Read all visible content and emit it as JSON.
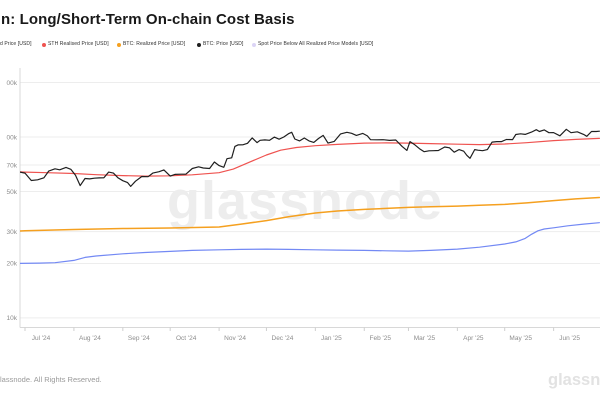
{
  "header": {
    "title": "n: Long/Short-Term On-chain Cost Basis"
  },
  "legend": {
    "items": [
      {
        "label": "d Price [USD]",
        "color": null
      },
      {
        "label": "STH Realised Price [USD]",
        "color": "#ef5350"
      },
      {
        "label": "BTC: Realized Price [USD]",
        "color": "#f5a01f"
      },
      {
        "label": "BTC: Price [USD]",
        "color": "#1f1f1f"
      },
      {
        "label": "Spot Price Below All Realized Price Models [USD]",
        "color": "#dbd4f6"
      }
    ]
  },
  "watermark": "glassnode",
  "footer": {
    "copyright": "lassnode. All Rights Reserved.",
    "wordmark": "glassnode"
  },
  "chart_data": {
    "type": "line",
    "scale": "log",
    "grid": "horizontal-only",
    "legend_position": "top",
    "values_unit": "USD thousands",
    "ylim_k": [
      8.9,
      240
    ],
    "y_axis": {
      "ticks": [
        {
          "label": "00k",
          "v": 200
        },
        {
          "label": "00k",
          "v": 100
        },
        {
          "label": "70k",
          "v": 70
        },
        {
          "label": "50k",
          "v": 50
        },
        {
          "label": "30k",
          "v": 30
        },
        {
          "label": "20k",
          "v": 20
        },
        {
          "label": "10k",
          "v": 10
        }
      ]
    },
    "x_axis": {
      "ticks": [
        {
          "label": "Jul '24",
          "date": "2024-07-01"
        },
        {
          "label": "Aug '24",
          "date": "2024-08-01"
        },
        {
          "label": "Sep '24",
          "date": "2024-09-01"
        },
        {
          "label": "Oct '24",
          "date": "2024-10-01"
        },
        {
          "label": "Nov '24",
          "date": "2024-11-01"
        },
        {
          "label": "Dec '24",
          "date": "2024-12-01"
        },
        {
          "label": "Jan '25",
          "date": "2025-01-01"
        },
        {
          "label": "Feb '25",
          "date": "2025-02-01"
        },
        {
          "label": "Mar '25",
          "date": "2025-03-01"
        },
        {
          "label": "Apr '25",
          "date": "2025-04-01"
        },
        {
          "label": "May '25",
          "date": "2025-05-01"
        },
        {
          "label": "Jun '25",
          "date": "2025-06-01"
        }
      ]
    },
    "series": [
      {
        "name": "d Price [USD]",
        "color": "#7389f4",
        "width": 1.2,
        "points": [
          [
            "2024-06-26",
            20.0
          ],
          [
            "2024-07-10",
            20.1
          ],
          [
            "2024-07-20",
            20.2
          ],
          [
            "2024-08-01",
            20.8
          ],
          [
            "2024-08-08",
            21.6
          ],
          [
            "2024-08-15",
            22.0
          ],
          [
            "2024-09-01",
            22.6
          ],
          [
            "2024-09-15",
            23.0
          ],
          [
            "2024-10-01",
            23.3
          ],
          [
            "2024-10-15",
            23.6
          ],
          [
            "2024-11-01",
            23.8
          ],
          [
            "2024-11-15",
            23.9
          ],
          [
            "2024-12-01",
            24.0
          ],
          [
            "2024-12-15",
            23.9
          ],
          [
            "2025-01-01",
            23.8
          ],
          [
            "2025-01-15",
            23.7
          ],
          [
            "2025-02-01",
            23.6
          ],
          [
            "2025-02-15",
            23.5
          ],
          [
            "2025-03-01",
            23.4
          ],
          [
            "2025-03-15",
            23.6
          ],
          [
            "2025-04-01",
            24.0
          ],
          [
            "2025-04-15",
            24.6
          ],
          [
            "2025-05-01",
            25.6
          ],
          [
            "2025-05-08",
            26.3
          ],
          [
            "2025-05-14",
            27.5
          ],
          [
            "2025-05-18",
            29.0
          ],
          [
            "2025-05-22",
            30.3
          ],
          [
            "2025-05-26",
            31.0
          ],
          [
            "2025-06-01",
            31.5
          ],
          [
            "2025-06-10",
            32.3
          ],
          [
            "2025-06-20",
            33.0
          ],
          [
            "2025-06-30",
            33.6
          ]
        ]
      },
      {
        "name": "BTC: Realized Price [USD]",
        "color": "#f5a01f",
        "width": 1.5,
        "points": [
          [
            "2024-06-26",
            30.2
          ],
          [
            "2024-07-01",
            30.3
          ],
          [
            "2024-08-01",
            30.8
          ],
          [
            "2024-09-01",
            31.2
          ],
          [
            "2024-10-01",
            31.4
          ],
          [
            "2024-11-01",
            31.8
          ],
          [
            "2024-11-15",
            33.0
          ],
          [
            "2024-12-01",
            34.5
          ],
          [
            "2024-12-15",
            36.2
          ],
          [
            "2025-01-01",
            38.0
          ],
          [
            "2025-01-15",
            39.0
          ],
          [
            "2025-02-01",
            39.8
          ],
          [
            "2025-02-15",
            40.3
          ],
          [
            "2025-03-01",
            40.8
          ],
          [
            "2025-03-15",
            41.2
          ],
          [
            "2025-04-01",
            41.5
          ],
          [
            "2025-04-15",
            41.9
          ],
          [
            "2025-05-01",
            42.4
          ],
          [
            "2025-05-15",
            43.2
          ],
          [
            "2025-06-01",
            44.5
          ],
          [
            "2025-06-15",
            45.5
          ],
          [
            "2025-06-30",
            46.3
          ]
        ]
      },
      {
        "name": "STH Realised Price [USD]",
        "color": "#ef5350",
        "width": 1.2,
        "points": [
          [
            "2024-06-26",
            64.2
          ],
          [
            "2024-07-01",
            64.0
          ],
          [
            "2024-07-15",
            63.5
          ],
          [
            "2024-08-01",
            62.8
          ],
          [
            "2024-08-15",
            61.9
          ],
          [
            "2024-09-01",
            61.2
          ],
          [
            "2024-09-15",
            60.8
          ],
          [
            "2024-10-01",
            61.0
          ],
          [
            "2024-10-15",
            61.8
          ],
          [
            "2024-11-01",
            63.5
          ],
          [
            "2024-11-10",
            66.5
          ],
          [
            "2024-11-20",
            72.5
          ],
          [
            "2024-12-01",
            79.5
          ],
          [
            "2024-12-10",
            84.5
          ],
          [
            "2024-12-20",
            87.5
          ],
          [
            "2025-01-01",
            89.5
          ],
          [
            "2025-01-15",
            91.0
          ],
          [
            "2025-02-01",
            92.5
          ],
          [
            "2025-02-15",
            92.8
          ],
          [
            "2025-03-01",
            92.5
          ],
          [
            "2025-03-15",
            92.0
          ],
          [
            "2025-04-01",
            91.2
          ],
          [
            "2025-04-15",
            90.8
          ],
          [
            "2025-05-01",
            91.5
          ],
          [
            "2025-05-15",
            93.0
          ],
          [
            "2025-06-01",
            95.5
          ],
          [
            "2025-06-15",
            97.0
          ],
          [
            "2025-06-30",
            98.2
          ]
        ]
      },
      {
        "name": "BTC: Price [USD]",
        "color": "#1f1f1f",
        "width": 1.2,
        "points": [
          [
            "2024-06-26",
            64.5
          ],
          [
            "2024-07-01",
            63.2
          ],
          [
            "2024-07-05",
            57.5
          ],
          [
            "2024-07-09",
            58.0
          ],
          [
            "2024-07-13",
            59.5
          ],
          [
            "2024-07-16",
            64.8
          ],
          [
            "2024-07-20",
            66.7
          ],
          [
            "2024-07-23",
            65.9
          ],
          [
            "2024-07-27",
            67.9
          ],
          [
            "2024-07-30",
            66.3
          ],
          [
            "2024-08-02",
            61.4
          ],
          [
            "2024-08-05",
            53.9
          ],
          [
            "2024-08-08",
            59.0
          ],
          [
            "2024-08-11",
            58.7
          ],
          [
            "2024-08-14",
            59.2
          ],
          [
            "2024-08-17",
            59.4
          ],
          [
            "2024-08-20",
            59.5
          ],
          [
            "2024-08-23",
            64.0
          ],
          [
            "2024-08-26",
            63.2
          ],
          [
            "2024-08-29",
            59.4
          ],
          [
            "2024-09-01",
            57.3
          ],
          [
            "2024-09-04",
            56.0
          ],
          [
            "2024-09-06",
            53.3
          ],
          [
            "2024-09-09",
            57.0
          ],
          [
            "2024-09-13",
            60.5
          ],
          [
            "2024-09-17",
            60.3
          ],
          [
            "2024-09-20",
            63.2
          ],
          [
            "2024-09-24",
            64.3
          ],
          [
            "2024-09-27",
            65.8
          ],
          [
            "2024-10-01",
            60.8
          ],
          [
            "2024-10-04",
            62.1
          ],
          [
            "2024-10-08",
            62.3
          ],
          [
            "2024-10-11",
            62.4
          ],
          [
            "2024-10-15",
            67.0
          ],
          [
            "2024-10-19",
            68.4
          ],
          [
            "2024-10-22",
            67.4
          ],
          [
            "2024-10-26",
            67.0
          ],
          [
            "2024-10-29",
            72.7
          ],
          [
            "2024-11-01",
            69.5
          ],
          [
            "2024-11-04",
            68.0
          ],
          [
            "2024-11-06",
            75.9
          ],
          [
            "2024-11-09",
            76.7
          ],
          [
            "2024-11-11",
            88.7
          ],
          [
            "2024-11-13",
            90.4
          ],
          [
            "2024-11-16",
            90.6
          ],
          [
            "2024-11-19",
            92.3
          ],
          [
            "2024-11-22",
            98.9
          ],
          [
            "2024-11-25",
            93.1
          ],
          [
            "2024-11-27",
            95.9
          ],
          [
            "2024-11-30",
            96.4
          ],
          [
            "2024-12-03",
            95.9
          ],
          [
            "2024-12-06",
            99.9
          ],
          [
            "2024-12-09",
            97.3
          ],
          [
            "2024-12-12",
            100.0
          ],
          [
            "2024-12-15",
            104.3
          ],
          [
            "2024-12-17",
            106.1
          ],
          [
            "2024-12-19",
            97.5
          ],
          [
            "2024-12-22",
            95.2
          ],
          [
            "2024-12-25",
            98.7
          ],
          [
            "2024-12-28",
            95.2
          ],
          [
            "2024-12-31",
            93.4
          ],
          [
            "2025-01-03",
            98.1
          ],
          [
            "2025-01-06",
            102.1
          ],
          [
            "2025-01-09",
            92.5
          ],
          [
            "2025-01-13",
            94.5
          ],
          [
            "2025-01-17",
            104.0
          ],
          [
            "2025-01-21",
            106.1
          ],
          [
            "2025-01-24",
            104.8
          ],
          [
            "2025-01-27",
            102.1
          ],
          [
            "2025-01-31",
            104.7
          ],
          [
            "2025-02-03",
            101.4
          ],
          [
            "2025-02-05",
            96.6
          ],
          [
            "2025-02-09",
            96.5
          ],
          [
            "2025-02-13",
            96.6
          ],
          [
            "2025-02-17",
            95.8
          ],
          [
            "2025-02-21",
            96.2
          ],
          [
            "2025-02-25",
            88.7
          ],
          [
            "2025-02-28",
            84.3
          ],
          [
            "2025-03-02",
            94.3
          ],
          [
            "2025-03-05",
            90.6
          ],
          [
            "2025-03-08",
            86.2
          ],
          [
            "2025-03-11",
            82.9
          ],
          [
            "2025-03-14",
            83.9
          ],
          [
            "2025-03-17",
            84.0
          ],
          [
            "2025-03-20",
            84.2
          ],
          [
            "2025-03-24",
            88.0
          ],
          [
            "2025-03-27",
            87.2
          ],
          [
            "2025-03-30",
            82.4
          ],
          [
            "2025-04-02",
            85.2
          ],
          [
            "2025-04-05",
            83.5
          ],
          [
            "2025-04-07",
            79.2
          ],
          [
            "2025-04-09",
            76.3
          ],
          [
            "2025-04-12",
            85.2
          ],
          [
            "2025-04-14",
            84.5
          ],
          [
            "2025-04-17",
            84.0
          ],
          [
            "2025-04-20",
            85.2
          ],
          [
            "2025-04-23",
            93.7
          ],
          [
            "2025-04-26",
            94.3
          ],
          [
            "2025-04-29",
            94.3
          ],
          [
            "2025-05-02",
            96.9
          ],
          [
            "2025-05-06",
            96.8
          ],
          [
            "2025-05-08",
            103.2
          ],
          [
            "2025-05-11",
            104.1
          ],
          [
            "2025-05-14",
            103.3
          ],
          [
            "2025-05-18",
            106.4
          ],
          [
            "2025-05-21",
            109.7
          ],
          [
            "2025-05-23",
            107.3
          ],
          [
            "2025-05-26",
            109.4
          ],
          [
            "2025-05-29",
            105.6
          ],
          [
            "2025-06-01",
            105.7
          ],
          [
            "2025-06-05",
            101.6
          ],
          [
            "2025-06-09",
            110.3
          ],
          [
            "2025-06-12",
            105.6
          ],
          [
            "2025-06-16",
            106.8
          ],
          [
            "2025-06-20",
            103.3
          ],
          [
            "2025-06-22",
            100.9
          ],
          [
            "2025-06-25",
            107.2
          ],
          [
            "2025-06-28",
            107.3
          ],
          [
            "2025-06-30",
            107.6
          ]
        ]
      }
    ]
  }
}
